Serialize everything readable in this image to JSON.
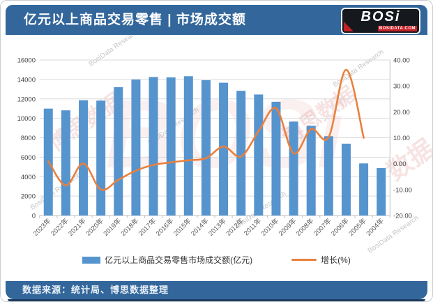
{
  "header": {
    "title": "亿元以上商品交易零售 | 市场成交额",
    "logo": {
      "text": "BOSi",
      "subtext": "BOSIDATA.COM"
    }
  },
  "footer": {
    "source": "数据来源：统计局、博思数据整理"
  },
  "watermark": {
    "cn": "博思数据",
    "cn_short": "数据",
    "en": "BosiData Research",
    "logo": "BOSi"
  },
  "theme": {
    "header_bg": "#33679B",
    "bar_color": "#5694CE",
    "line_color": "#E9803D",
    "grid_color": "#DADADA",
    "axis_color": "#BFBFBF",
    "label_color": "#595959"
  },
  "chart_data": {
    "type": "combo-bar-line",
    "title": "亿元以上商品交易零售 | 市场成交额",
    "categories": [
      "2023年",
      "2022年",
      "2021年",
      "2020年",
      "2019年",
      "2018年",
      "2017年",
      "2016年",
      "2015年",
      "2014年",
      "2013年",
      "2012年",
      "2011年",
      "2010年",
      "2009年",
      "2008年",
      "2007年",
      "2006年",
      "2005年",
      "2004年"
    ],
    "series": [
      {
        "name": "亿元以上商品交易零售市场成交额(亿元)",
        "type": "bar",
        "axis": "left",
        "color": "#5694CE",
        "values": [
          11000,
          10820,
          11860,
          11820,
          13200,
          13990,
          14250,
          14210,
          14330,
          13920,
          13660,
          12830,
          12450,
          11700,
          9660,
          9230,
          8160,
          7390,
          5360,
          4880
        ]
      },
      {
        "name": "增长(%)",
        "type": "line",
        "axis": "right",
        "color": "#E9803D",
        "smooth": true,
        "values": [
          1.0,
          -8.4,
          0.1,
          -10.0,
          -6.2,
          -2.7,
          -0.5,
          0.5,
          1.3,
          2.1,
          6.6,
          2.8,
          12.5,
          21.3,
          4.0,
          13.3,
          10.2,
          36.2,
          10.0,
          null
        ]
      }
    ],
    "left_axis": {
      "min": 0,
      "max": 16000,
      "step": 2000
    },
    "right_axis": {
      "min": -20,
      "max": 40,
      "step": 10,
      "decimals": 2
    },
    "grid": "horizontal",
    "legend_position": "bottom",
    "x_label_rotation": -45
  }
}
